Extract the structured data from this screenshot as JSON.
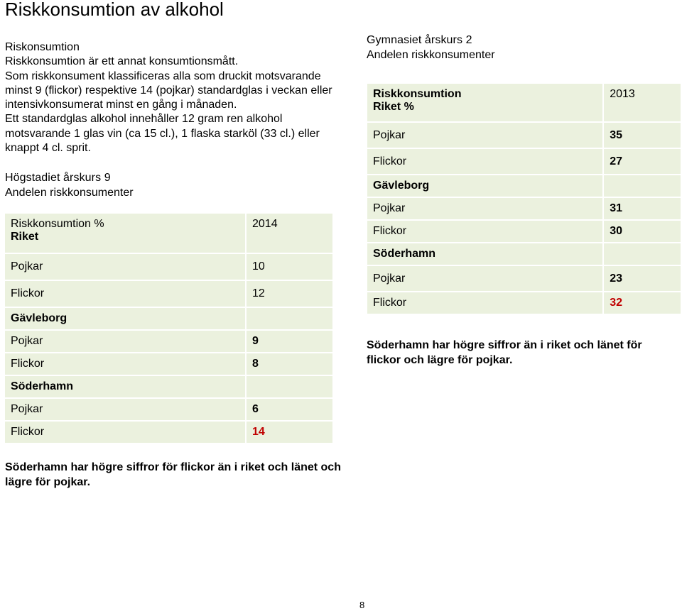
{
  "page_title": "Riskkonsumtion av alkohol",
  "intro": {
    "heading": "Riskonsumtion",
    "paragraphs": [
      "Riskkonsumtion är ett annat konsumtionsmått.",
      "Som riskkonsument klassificeras alla som druckit motsvarande minst 9 (flickor) respektive 14 (pojkar) standardglas i veckan eller intensivkonsumerat minst en gång i månaden.",
      "Ett standardglas alkohol innehåller 12 gram ren alkohol motsvarande 1 glas vin (ca 15 cl.), 1 flaska starköl (33 cl.) eller knappt 4 cl. sprit."
    ]
  },
  "hogstadiet": {
    "heading_line1": "Högstadiet årskurs 9",
    "heading_line2": "Andelen riskkonsumenter",
    "table": {
      "header_label_line1": "Riskkonsumtion %",
      "header_label_line2": "Riket",
      "header_year": "2014",
      "rows": [
        {
          "label": "Pojkar",
          "value": "10"
        },
        {
          "label": "Flickor",
          "value": "12"
        },
        {
          "label": "Gävleborg",
          "value": ""
        },
        {
          "label": "Pojkar",
          "value": "9"
        },
        {
          "label": "Flickor",
          "value": "8"
        },
        {
          "label": "Söderhamn",
          "value": ""
        },
        {
          "label": "Pojkar",
          "value": "6"
        },
        {
          "label": "Flickor",
          "value": "14"
        }
      ]
    },
    "conclusion": "Söderhamn har högre siffror för flickor än i riket och länet och lägre för pojkar."
  },
  "gymnasiet": {
    "heading_line1": "Gymnasiet årskurs 2",
    "heading_line2": "Andelen riskkonsumenter",
    "table": {
      "header_label_line1": "Riskkonsumtion",
      "header_label_line2": "Riket %",
      "header_year": "2013",
      "rows": [
        {
          "label": "Pojkar",
          "value": "35"
        },
        {
          "label": "Flickor",
          "value": "27"
        },
        {
          "label": "Gävleborg",
          "value": ""
        },
        {
          "label": "Pojkar",
          "value": "31"
        },
        {
          "label": "Flickor",
          "value": "30"
        },
        {
          "label": "Söderhamn",
          "value": ""
        },
        {
          "label": "Pojkar",
          "value": "23"
        },
        {
          "label": "Flickor",
          "value": "32"
        }
      ]
    },
    "conclusion": "Söderhamn har högre siffror än i riket och länet för flickor och lägre för pojkar."
  },
  "colors": {
    "cell_background": "#ebf1de",
    "highlight_value": "#c00000"
  },
  "page_number": "8"
}
